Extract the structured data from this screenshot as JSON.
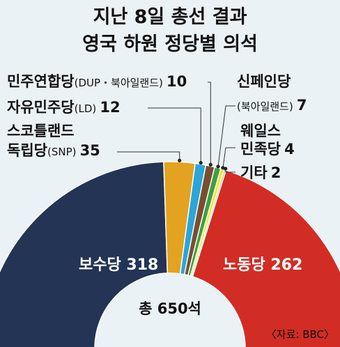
{
  "title": [
    "지난 8일 총선 결과",
    "영국 하원 정당별 의석"
  ],
  "total_label": "총 650석",
  "source": "〈자료: BBC〉",
  "chart_data": {
    "type": "pie",
    "subtype": "half-donut",
    "total": 650,
    "unit": "석",
    "segments": [
      {
        "name": "보수당",
        "value": 318,
        "color": "#233455"
      },
      {
        "name": "스코틀랜드 독립당(SNP)",
        "value": 35,
        "color": "#e3a320"
      },
      {
        "name": "자유민주당(LD)",
        "value": 12,
        "color": "#2aa6d9"
      },
      {
        "name": "민주연합당(DUP·북아일랜드)",
        "value": 10,
        "color": "#7a4f30"
      },
      {
        "name": "신페인당(북아일랜드)",
        "value": 7,
        "color": "#3f9f45"
      },
      {
        "name": "웨일스 민족당",
        "value": 4,
        "color": "#f2e91e"
      },
      {
        "name": "기타",
        "value": 2,
        "color": "#b3aaa0"
      },
      {
        "name": "노동당",
        "value": 262,
        "color": "#d12d25"
      }
    ]
  },
  "labels": {
    "conservative": {
      "name": "보수당",
      "value": "318"
    },
    "labour": {
      "name": "노동당",
      "value": "262"
    },
    "dup": {
      "name": "민주연합당",
      "paren": "(DUP・북아일랜드)",
      "value": "10"
    },
    "ld": {
      "name": "자유민주당",
      "paren": "(LD)",
      "value": "12"
    },
    "snp": {
      "line1": "스코틀랜드",
      "name": "독립당",
      "paren": "(SNP)",
      "value": "35"
    },
    "sinnfein": {
      "line1": "신페인당",
      "paren": "(북아일랜드)",
      "value": "7"
    },
    "plaid": {
      "line1": "웨일스",
      "name": "민족당",
      "value": "4"
    },
    "other": {
      "name": "기타",
      "value": "2"
    }
  }
}
